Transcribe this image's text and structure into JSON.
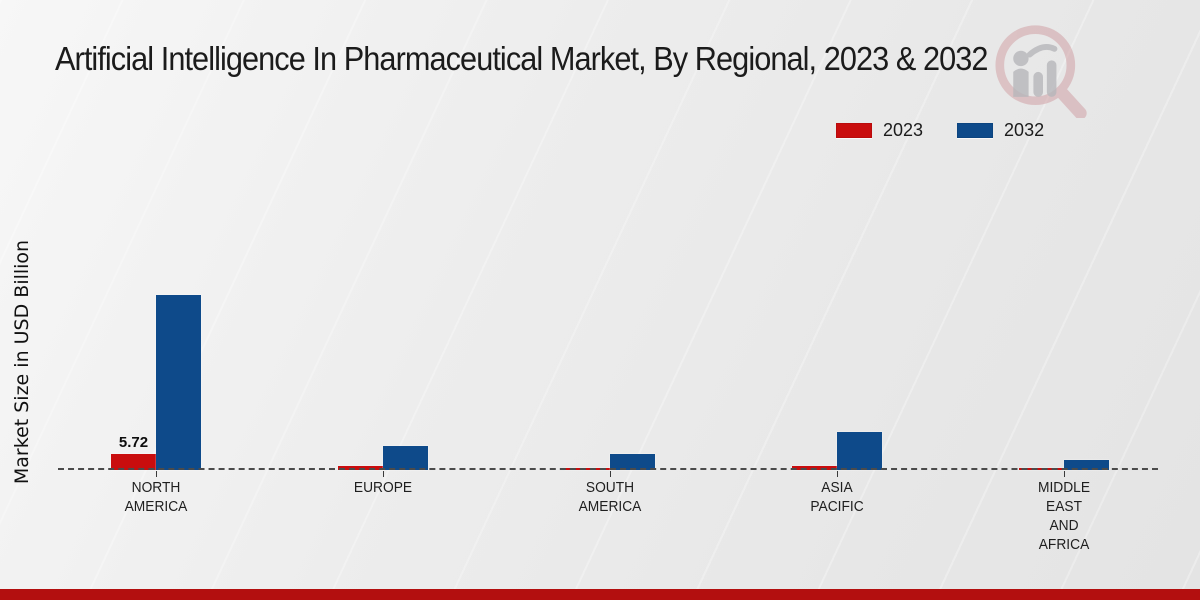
{
  "header": {
    "title": "Artificial Intelligence In Pharmaceutical Market, By Regional, 2023 & 2032"
  },
  "axis": {
    "y_label": "Market Size in USD Billion"
  },
  "legend": {
    "items": [
      {
        "label": "2023",
        "color": "#c90d0e"
      },
      {
        "label": "2032",
        "color": "#0e4a8a"
      }
    ]
  },
  "watermark_icon": "magnifier-bar-chart-logo",
  "accent": {
    "footer_bar_color": "#b30f0f"
  },
  "chart_data": {
    "type": "bar",
    "title": "Artificial Intelligence In Pharmaceutical Market, By Regional, 2023 & 2032",
    "xlabel": "",
    "ylabel": "Market Size in USD Billion",
    "unit": "USD Billion",
    "categories": [
      "NORTH AMERICA",
      "EUROPE",
      "SOUTH AMERICA",
      "ASIA PACIFIC",
      "MIDDLE EAST AND AFRICA"
    ],
    "category_lines": [
      [
        "NORTH",
        "AMERICA"
      ],
      [
        "EUROPE"
      ],
      [
        "SOUTH",
        "AMERICA"
      ],
      [
        "ASIA",
        "PACIFIC"
      ],
      [
        "MIDDLE",
        "EAST",
        "AND",
        "AFRICA"
      ]
    ],
    "series": [
      {
        "name": "2023",
        "color": "#c90d0e",
        "values": [
          5.72,
          1.3,
          0.85,
          1.3,
          0.55
        ]
      },
      {
        "name": "2032",
        "color": "#0e4a8a",
        "values": [
          62.0,
          8.6,
          5.6,
          13.3,
          3.5
        ]
      }
    ],
    "data_labels": [
      {
        "series": "2023",
        "category": "NORTH AMERICA",
        "text": "5.72"
      }
    ],
    "baseline_value": 0,
    "ylim": [
      0,
      65
    ],
    "grid": false,
    "legend_position": "top-right",
    "baseline_style": "dashed"
  }
}
